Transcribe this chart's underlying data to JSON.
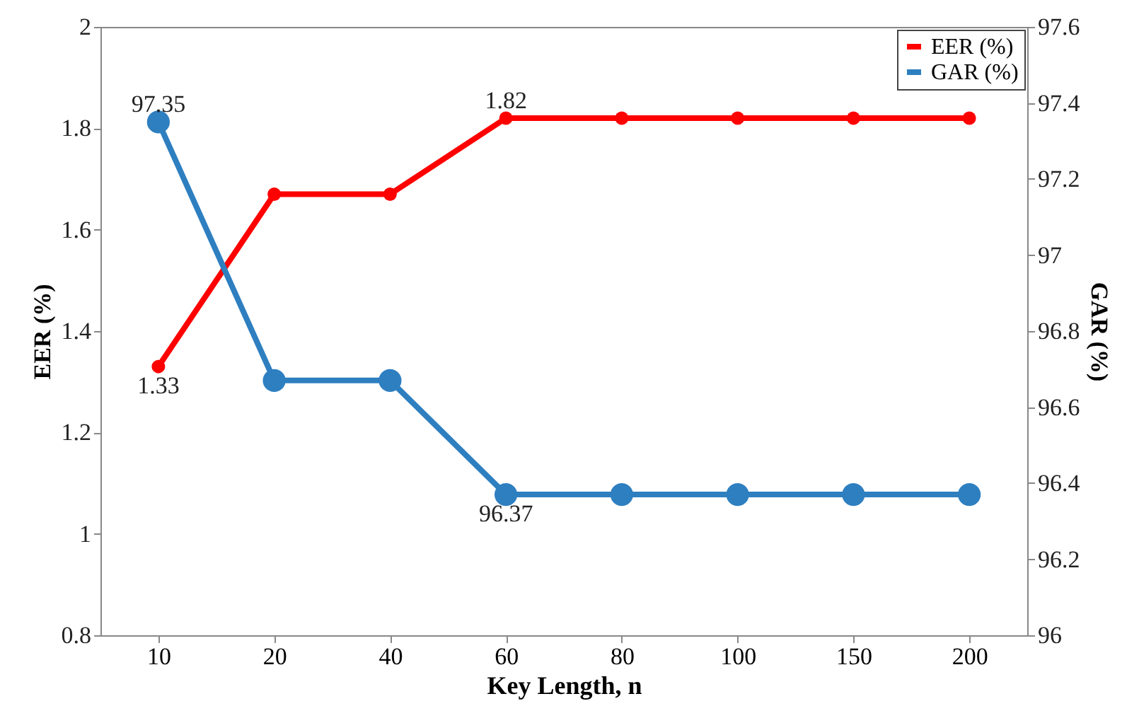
{
  "chart_data": {
    "type": "line",
    "xlabel": "Key Length, n",
    "ylabel": "EER (%)",
    "y2label": "GAR (%)",
    "categories": [
      "10",
      "20",
      "40",
      "60",
      "80",
      "100",
      "150",
      "200"
    ],
    "series": [
      {
        "name": "EER (%)",
        "color": "#ff0000",
        "values": [
          1.33,
          1.67,
          1.67,
          1.82,
          1.82,
          1.82,
          1.82,
          1.82
        ],
        "value_labels": [
          "1.33",
          null,
          null,
          "1.82",
          null,
          null,
          null,
          null
        ]
      },
      {
        "name": "GAR (%)",
        "color": "#2e7fc0",
        "axis": "y2",
        "values": [
          97.35,
          96.67,
          96.67,
          96.37,
          96.37,
          96.37,
          96.37,
          96.37
        ],
        "value_labels": [
          "97.35",
          null,
          null,
          "96.37",
          null,
          null,
          null,
          null
        ]
      }
    ],
    "ylim": [
      0.8,
      2
    ],
    "yticks": [
      0.8,
      1,
      1.2,
      1.4,
      1.6,
      1.8,
      2
    ],
    "y2lim": [
      96,
      97.6
    ],
    "y2ticks": [
      96,
      96.2,
      96.4,
      96.6,
      96.8,
      97,
      97.2,
      97.4,
      97.6
    ],
    "grid": false,
    "legend": "top right",
    "marker": "circle",
    "line_style": "solid"
  }
}
